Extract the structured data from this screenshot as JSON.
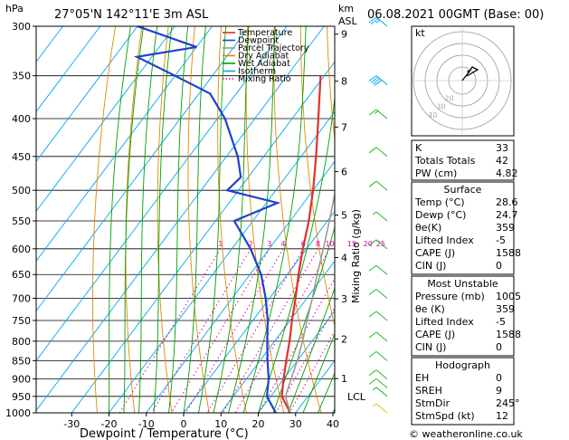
{
  "header": {
    "location": "27°05'N 142°11'E 3m ASL",
    "valid": "06.08.2021 00GMT (Base: 00)"
  },
  "axis_labels": {
    "p_unit": "hPa",
    "km_unit_1": "km",
    "km_unit_2": "ASL",
    "x_title": "Dewpoint / Temperature (°C)",
    "mixing_title": "Mixing Ratio (g/kg)",
    "lcl": "LCL"
  },
  "pressure_ticks": [
    "300",
    "350",
    "400",
    "450",
    "500",
    "550",
    "600",
    "650",
    "700",
    "750",
    "800",
    "850",
    "900",
    "950",
    "1000"
  ],
  "temp_ticks": [
    "-30",
    "-20",
    "-10",
    "0",
    "10",
    "20",
    "30",
    "40"
  ],
  "km_ticks": [
    "1",
    "2",
    "3",
    "4",
    "5",
    "6",
    "7",
    "8",
    "9"
  ],
  "mixing_ticks": [
    "1",
    "2",
    "3",
    "4",
    "6",
    "8",
    "10",
    "15",
    "20",
    "25"
  ],
  "legend": [
    "Temperature",
    "Dewpoint",
    "Parcel Trajectory",
    "Dry Adiabat",
    "Wet Adiabat",
    "Isotherm",
    "Mixing Ratio"
  ],
  "colors": {
    "temperature": "#e03030",
    "dewpoint": "#1e40d0",
    "parcel": "#9a9a9a",
    "dry_adiabat": "#e08a00",
    "wet_adiabat": "#00a000",
    "isotherm": "#00aaee",
    "mixing_ratio": "#e000a0",
    "barb": "#22bb22"
  },
  "chart_data": {
    "type": "line",
    "y_scale": "log pressure",
    "ylim": [
      1000,
      300
    ],
    "xlim": [
      -40,
      40
    ],
    "series": [
      {
        "name": "Temperature",
        "points": [
          [
            1000,
            28.6
          ],
          [
            950,
            23
          ],
          [
            900,
            20
          ],
          [
            850,
            17
          ],
          [
            800,
            14
          ],
          [
            750,
            10.5
          ],
          [
            700,
            7
          ],
          [
            650,
            3
          ],
          [
            600,
            -1
          ],
          [
            550,
            -5
          ],
          [
            500,
            -10
          ],
          [
            450,
            -16
          ],
          [
            400,
            -23
          ],
          [
            350,
            -31
          ]
        ]
      },
      {
        "name": "Dewpoint",
        "points": [
          [
            1000,
            24.7
          ],
          [
            950,
            19
          ],
          [
            900,
            16
          ],
          [
            850,
            12
          ],
          [
            800,
            8
          ],
          [
            750,
            4
          ],
          [
            700,
            -1
          ],
          [
            650,
            -7
          ],
          [
            600,
            -15
          ],
          [
            550,
            -25
          ],
          [
            520,
            -17
          ],
          [
            500,
            -33
          ],
          [
            480,
            -32
          ],
          [
            450,
            -37
          ],
          [
            400,
            -48
          ],
          [
            370,
            -57
          ],
          [
            350,
            -70
          ],
          [
            330,
            -84
          ],
          [
            320,
            -70
          ],
          [
            300,
            -90
          ]
        ]
      },
      {
        "name": "Parcel Trajectory",
        "points": [
          [
            1000,
            28.6
          ],
          [
            950,
            24
          ],
          [
            900,
            22
          ],
          [
            850,
            20
          ],
          [
            800,
            17.5
          ],
          [
            750,
            14.5
          ],
          [
            700,
            11.5
          ],
          [
            650,
            8
          ],
          [
            600,
            4.5
          ],
          [
            550,
            0.5
          ],
          [
            500,
            -4
          ],
          [
            450,
            -9.5
          ],
          [
            400,
            -16
          ],
          [
            350,
            -24
          ]
        ]
      }
    ],
    "wind_barbs": [
      {
        "p": 1000,
        "spd": 5,
        "color": "#e6c000"
      },
      {
        "p": 950,
        "spd": 5
      },
      {
        "p": 925,
        "spd": 10
      },
      {
        "p": 900,
        "spd": 10
      },
      {
        "p": 850,
        "spd": 10
      },
      {
        "p": 800,
        "spd": 10
      },
      {
        "p": 750,
        "spd": 10
      },
      {
        "p": 700,
        "spd": 10
      },
      {
        "p": 650,
        "spd": 10
      },
      {
        "p": 600,
        "spd": 10
      },
      {
        "p": 550,
        "spd": 5
      },
      {
        "p": 500,
        "spd": 10
      },
      {
        "p": 450,
        "spd": 10
      },
      {
        "p": 400,
        "spd": 15
      },
      {
        "p": 360,
        "spd": 40,
        "color": "#00aaee"
      },
      {
        "p": 300,
        "spd": 25,
        "color": "#00aaee"
      }
    ]
  },
  "hodograph": {
    "label": "kt",
    "ring_labels": [
      "20",
      "30",
      "40"
    ]
  },
  "table": {
    "indices": [
      {
        "k": "K",
        "v": "33"
      },
      {
        "k": "Totals Totals",
        "v": "42"
      },
      {
        "k": "PW (cm)",
        "v": "4.82"
      }
    ],
    "surface": {
      "title": "Surface",
      "rows": [
        {
          "k": "Temp (°C)",
          "v": "28.6"
        },
        {
          "k": "Dewp (°C)",
          "v": "24.7"
        },
        {
          "k": "θe(K)",
          "v": "359"
        },
        {
          "k": "Lifted Index",
          "v": "-5"
        },
        {
          "k": "CAPE (J)",
          "v": "1588"
        },
        {
          "k": "CIN (J)",
          "v": "0"
        }
      ]
    },
    "unstable": {
      "title": "Most Unstable",
      "rows": [
        {
          "k": "Pressure (mb)",
          "v": "1005"
        },
        {
          "k": "θe (K)",
          "v": "359"
        },
        {
          "k": "Lifted Index",
          "v": "-5"
        },
        {
          "k": "CAPE (J)",
          "v": "1588"
        },
        {
          "k": "CIN (J)",
          "v": "0"
        }
      ]
    },
    "hodo": {
      "title": "Hodograph",
      "rows": [
        {
          "k": "EH",
          "v": "0"
        },
        {
          "k": "SREH",
          "v": "9"
        },
        {
          "k": "StmDir",
          "v": "245°"
        },
        {
          "k": "StmSpd (kt)",
          "v": "12"
        }
      ]
    }
  },
  "footer": "© weatheronline.co.uk"
}
